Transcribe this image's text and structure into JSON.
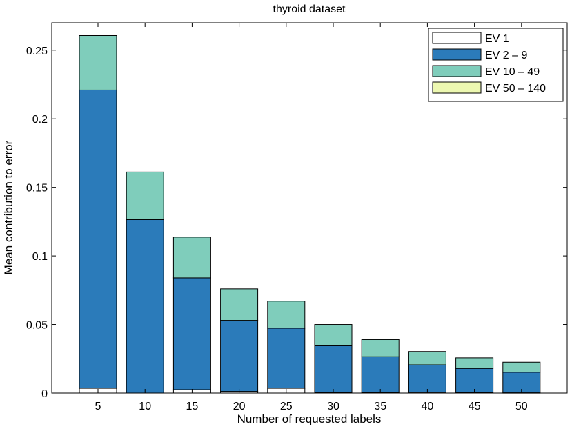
{
  "chart_data": {
    "type": "bar",
    "stacked": true,
    "title": "thyroid dataset",
    "xlabel": "Number of requested labels",
    "ylabel": "Mean contribution to error",
    "categories": [
      "5",
      "10",
      "15",
      "20",
      "25",
      "30",
      "35",
      "40",
      "45",
      "50"
    ],
    "ylim": [
      0,
      0.27
    ],
    "yticks": [
      0,
      0.05,
      0.1,
      0.15,
      0.2,
      0.25
    ],
    "ytick_labels": [
      "0",
      "0.05",
      "0.1",
      "0.15",
      "0.2",
      "0.25"
    ],
    "grid": false,
    "legend_position": "top-right",
    "series": [
      {
        "name": "EV 1",
        "color": "#ffffff",
        "values": [
          0.0035,
          0.0,
          0.0025,
          0.0012,
          0.0035,
          0.0003,
          0.0003,
          0.0006,
          0.0003,
          0.0002
        ]
      },
      {
        "name": "EV 2 – 9",
        "color": "#2b7bba",
        "values": [
          0.2175,
          0.1265,
          0.0815,
          0.0518,
          0.0438,
          0.0342,
          0.0262,
          0.02,
          0.0177,
          0.015
        ]
      },
      {
        "name": "EV 10 – 49",
        "color": "#7fcdbb",
        "values": [
          0.0397,
          0.0347,
          0.0297,
          0.023,
          0.0197,
          0.0155,
          0.0125,
          0.0097,
          0.0077,
          0.0073
        ]
      },
      {
        "name": "EV 50 – 140",
        "color": "#edf8b1",
        "values": [
          0.0,
          0.0,
          0.0,
          0.0,
          0.0,
          0.0,
          0.0,
          0.0,
          0.0,
          0.0
        ]
      }
    ]
  }
}
